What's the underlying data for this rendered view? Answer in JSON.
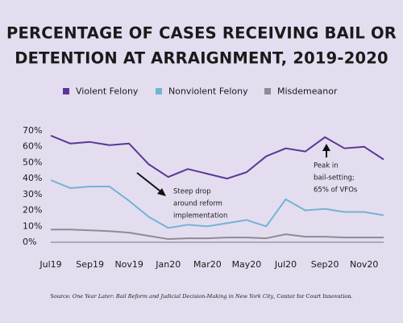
{
  "chart_data": {
    "type": "line",
    "title": [
      "PERCENTAGE OF CASES RECEIVING BAIL OR",
      "DETENTION AT ARRAIGNMENT, 2019-2020"
    ],
    "categories": [
      "Jul19",
      null,
      "Sep19",
      null,
      "Nov19",
      null,
      "Jan20",
      null,
      "Mar20",
      null,
      "May20",
      null,
      "Jul20",
      null,
      "Sep20",
      null,
      "Nov20",
      null
    ],
    "series": [
      {
        "name": "Violent Felony",
        "color": "#5a3795",
        "values": [
          67,
          62,
          63,
          61,
          62,
          49,
          41,
          46,
          43,
          40,
          44,
          54,
          59,
          57,
          66,
          59,
          60,
          52
        ]
      },
      {
        "name": "Nonviolent Felony",
        "color": "#72b4d4",
        "values": [
          39,
          34,
          35,
          35,
          26,
          16,
          9,
          11,
          10,
          12,
          14,
          10,
          27,
          20,
          21,
          19,
          19,
          17
        ]
      },
      {
        "name": "Misdemeanor",
        "color": "#8e8c93",
        "values": [
          8,
          8,
          7.5,
          7,
          6,
          4,
          2,
          2.5,
          2.5,
          3,
          3,
          2.5,
          5,
          3.5,
          3.5,
          3,
          3,
          3
        ]
      }
    ],
    "ylim": [
      0,
      70
    ],
    "yticks": [
      {
        "value": 0,
        "label": "0%"
      },
      {
        "value": 10,
        "label": "10%"
      },
      {
        "value": 20,
        "label": "20%"
      },
      {
        "value": 30,
        "label": "30%"
      },
      {
        "value": 40,
        "label": "40%"
      },
      {
        "value": 50,
        "label": "50%"
      },
      {
        "value": 60,
        "label": "60%"
      },
      {
        "value": 70,
        "label": "70%"
      }
    ],
    "grid": false,
    "legend": "top",
    "annotations": [
      {
        "lines": [
          "Steep drop",
          "around reform",
          "implementation"
        ]
      },
      {
        "lines": [
          "Peak in",
          "bail-setting;",
          "65% of VFOs"
        ]
      }
    ],
    "source": [
      "Source: ",
      "One Year Later: Bail Reform and Judicial Decision-Making in New York City",
      ", Center for Court Innovation."
    ]
  }
}
